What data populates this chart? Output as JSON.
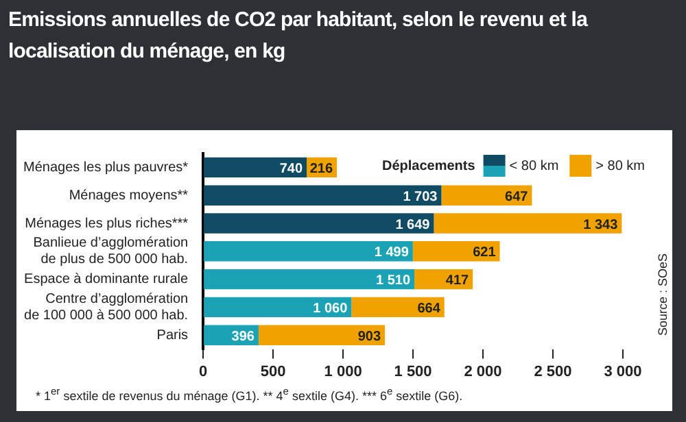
{
  "chart_data": {
    "type": "bar",
    "orientation": "horizontal",
    "stacked": true,
    "title": "Emissions annuelles de CO2 par habitant, selon le revenu et la localisation du ménage, en kg",
    "categories": [
      "Ménages les plus pauvres*",
      "Ménages moyens**",
      "Ménages les plus riches***",
      "Banlieue d’agglomération\nde plus de 500 000 hab.",
      "Espace à dominante rurale",
      "Centre d’agglomération\nde 100 000 à 500 000 hab.",
      "Paris"
    ],
    "series": [
      {
        "name": "< 80 km",
        "colors": [
          "#0f4c63",
          "#0f4c63",
          "#0f4c63",
          "#1ba3b5",
          "#1ba3b5",
          "#1ba3b5",
          "#1ba3b5"
        ],
        "values": [
          740,
          1703,
          1649,
          1499,
          1510,
          1060,
          396
        ],
        "value_labels": [
          "740",
          "1 703",
          "1 649",
          "1 499",
          "1 510",
          "1 060",
          "396"
        ]
      },
      {
        "name": "> 80 km",
        "color": "#f0a200",
        "values": [
          216,
          647,
          1343,
          621,
          417,
          664,
          903
        ],
        "value_labels": [
          "216",
          "647",
          "1 343",
          "621",
          "417",
          "664",
          "903"
        ]
      }
    ],
    "legend_title": "Déplacements",
    "legend": "top right",
    "xlim": [
      0,
      3000
    ],
    "xticks": [
      0,
      500,
      {
        "value": 1000,
        "label": "1 000"
      },
      {
        "value": 1500,
        "label": "1 500"
      },
      {
        "value": 2000,
        "label": "2 000"
      },
      {
        "value": 2500,
        "label": "2 500"
      },
      {
        "value": 3000,
        "label": "3 000"
      }
    ],
    "annotations": [
      "Source : SOeS",
      "* 1$^{er}$ sextile de revenus du ménage (G1). ** 4$^{e}$ sextile (G4). *** 6$^{e}$ sextile (G6)."
    ]
  }
}
